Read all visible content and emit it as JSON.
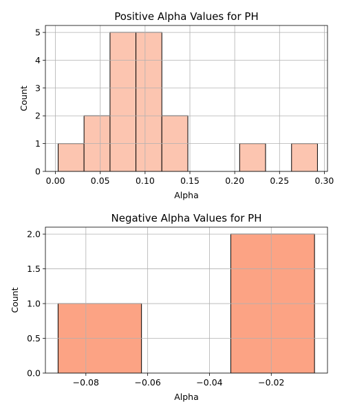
{
  "chart_data": [
    {
      "type": "bar",
      "title": "Positive Alpha Values for PH",
      "xlabel": "Alpha",
      "ylabel": "Count",
      "color": "#fcc5b0",
      "xlim": [
        -0.0112,
        0.3035
      ],
      "ylim": [
        0,
        5.25
      ],
      "grid": true,
      "xticks": [
        0.0,
        0.05,
        0.1,
        0.15,
        0.2,
        0.25,
        0.3
      ],
      "xtick_labels": [
        "0.00",
        "0.05",
        "0.10",
        "0.15",
        "0.20",
        "0.25",
        "0.30"
      ],
      "yticks": [
        0,
        1,
        2,
        3,
        4,
        5
      ],
      "ytick_labels": [
        "0",
        "1",
        "2",
        "3",
        "4",
        "5"
      ],
      "bins": [
        {
          "x0": 0.003,
          "x1": 0.0319,
          "count": 1
        },
        {
          "x0": 0.0319,
          "x1": 0.0609,
          "count": 2
        },
        {
          "x0": 0.0609,
          "x1": 0.0898,
          "count": 5
        },
        {
          "x0": 0.0898,
          "x1": 0.1187,
          "count": 5
        },
        {
          "x0": 0.1187,
          "x1": 0.1477,
          "count": 2
        },
        {
          "x0": 0.1477,
          "x1": 0.1766,
          "count": 0
        },
        {
          "x0": 0.1766,
          "x1": 0.2055,
          "count": 0
        },
        {
          "x0": 0.2055,
          "x1": 0.2344,
          "count": 1
        },
        {
          "x0": 0.2344,
          "x1": 0.2634,
          "count": 0
        },
        {
          "x0": 0.2634,
          "x1": 0.2923,
          "count": 1
        }
      ]
    },
    {
      "type": "bar",
      "title": "Negative Alpha Values for PH",
      "xlabel": "Alpha",
      "ylabel": "Count",
      "color": "#fca384",
      "xlim": [
        -0.0931,
        -0.0018
      ],
      "ylim": [
        0,
        2.1
      ],
      "grid": true,
      "xticks": [
        -0.08,
        -0.06,
        -0.04,
        -0.02
      ],
      "xtick_labels": [
        "−0.08",
        "−0.06",
        "−0.04",
        "−0.02"
      ],
      "yticks": [
        0,
        0.5,
        1.0,
        1.5,
        2.0
      ],
      "ytick_labels": [
        "0.0",
        "0.5",
        "1.0",
        "1.5",
        "2.0"
      ],
      "bins": [
        {
          "x0": -0.089,
          "x1": -0.062,
          "count": 1
        },
        {
          "x0": -0.062,
          "x1": -0.0331,
          "count": 0
        },
        {
          "x0": -0.0331,
          "x1": -0.006,
          "count": 2
        }
      ]
    }
  ]
}
